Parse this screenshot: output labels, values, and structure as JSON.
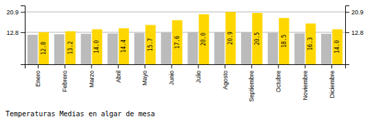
{
  "chart_data": {
    "type": "bar",
    "title": "Temperaturas Medias en algar de mesa",
    "categories": [
      "Enero",
      "Febrero",
      "Marzo",
      "Abril",
      "Mayo",
      "Junio",
      "Julio",
      "Agosto",
      "Septiembre",
      "Octubre",
      "Noviembre",
      "Diciembre"
    ],
    "series": [
      {
        "color": "#BBBBBB",
        "values": [
          11.8,
          12.0,
          12.2,
          12.3,
          12.5,
          12.7,
          12.8,
          12.8,
          12.8,
          12.6,
          12.4,
          12.2
        ]
      },
      {
        "color": "#FFD700",
        "values": [
          12.8,
          13.2,
          14.0,
          14.4,
          15.7,
          17.6,
          20.0,
          20.9,
          20.5,
          18.5,
          16.3,
          14.0
        ],
        "value_labels": [
          "12.8",
          "13.2",
          "14.0",
          "14.4",
          "15.7",
          "17.6",
          "20.0",
          "20.9",
          "20.5",
          "18.5",
          "16.3",
          "14.0"
        ],
        "data_labels": true
      }
    ],
    "ylim": [
      0,
      23.5
    ],
    "yticks": [
      12.8,
      20.9
    ],
    "y2lim": [
      0,
      23.5
    ],
    "y2ticks": [
      12.8,
      20.9
    ],
    "grid": true
  }
}
